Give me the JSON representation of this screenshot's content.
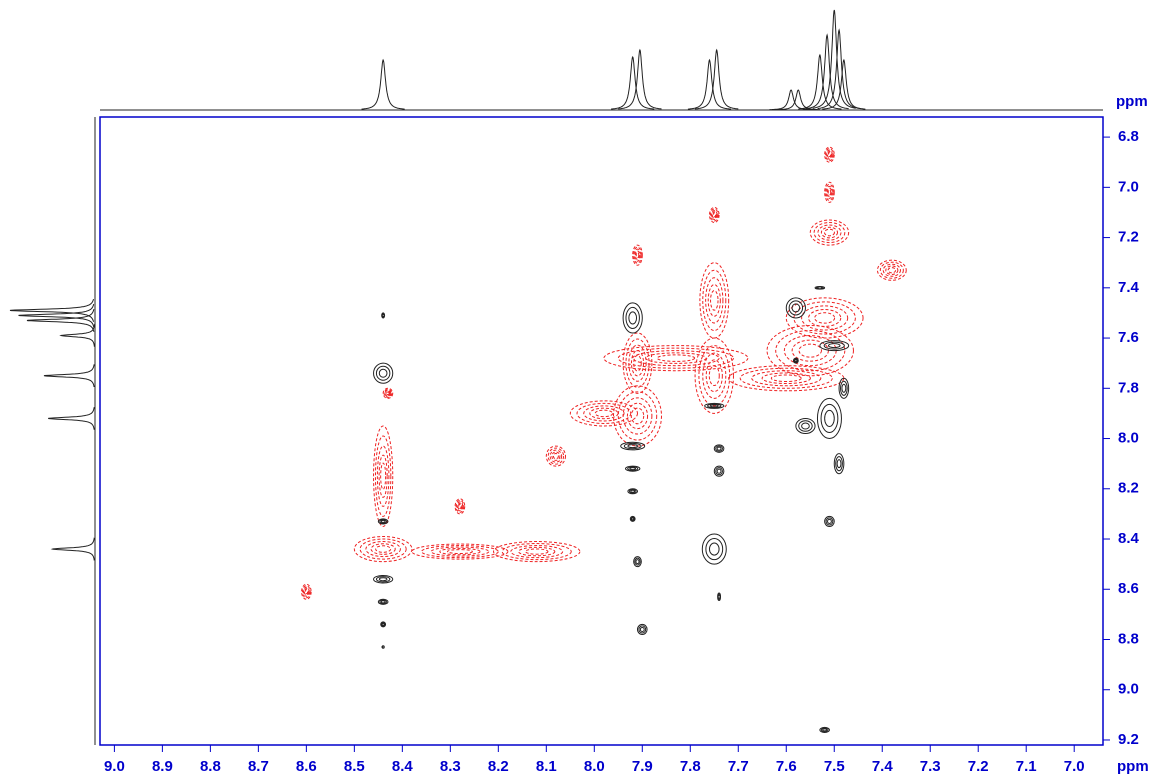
{
  "chart_data": {
    "type": "contour",
    "xlabel": "ppm",
    "ylabel": "ppm",
    "xlim": [
      9.03,
      6.94
    ],
    "ylim": [
      6.72,
      9.22
    ],
    "xticks": [
      {
        "value": 9,
        "label": "9.0"
      },
      8.9,
      8.8,
      8.7,
      8.6,
      8.5,
      8.4,
      8.3,
      8.2,
      8.1,
      {
        "value": 8,
        "label": "8.0"
      },
      7.9,
      7.8,
      7.7,
      7.6,
      7.5,
      7.4,
      7.3,
      7.2,
      7.1,
      {
        "value": 7,
        "label": "7.0"
      }
    ],
    "yticks": [
      6.8,
      {
        "value": 7,
        "label": "7.0"
      },
      7.2,
      7.4,
      7.6,
      7.8,
      {
        "value": 8,
        "label": "8.0"
      },
      8.2,
      8.4,
      8.6,
      8.8,
      {
        "value": 9,
        "label": "9.0"
      },
      9.2
    ],
    "axis_color": "#0000cc",
    "x_projection": {
      "x": [
        8.44,
        7.92,
        7.905,
        7.76,
        7.745,
        7.59,
        7.575,
        7.53,
        7.515,
        7.5,
        7.49,
        7.48
      ],
      "values": [
        0.5,
        0.53,
        0.6,
        0.5,
        0.6,
        0.2,
        0.2,
        0.55,
        0.75,
        1.0,
        0.8,
        0.5
      ]
    },
    "y_projection": {
      "y": [
        7.49,
        7.51,
        7.53,
        7.59,
        7.75,
        7.92,
        8.44
      ],
      "values": [
        1.0,
        0.9,
        0.8,
        0.4,
        0.6,
        0.55,
        0.5
      ]
    },
    "series": [
      {
        "color": "#ee2222",
        "dashed": true,
        "x": [
          8.44,
          8.44,
          8.12,
          8.28,
          8.6,
          8.28,
          8.43,
          8.08,
          7.91,
          7.91,
          7.91,
          7.98,
          7.75,
          7.75,
          7.75,
          7.83,
          7.52,
          7.55,
          7.38,
          7.51,
          7.51,
          7.51,
          7.6
        ],
        "y": [
          8.44,
          8.15,
          8.45,
          8.45,
          8.61,
          8.27,
          7.82,
          8.07,
          7.91,
          7.7,
          7.27,
          7.9,
          7.75,
          7.45,
          7.11,
          7.68,
          7.52,
          7.65,
          7.33,
          7.18,
          7.02,
          6.87,
          7.76
        ],
        "rx": [
          0.06,
          0.02,
          0.09,
          0.1,
          0.01,
          0.01,
          0.01,
          0.02,
          0.05,
          0.03,
          0.01,
          0.07,
          0.04,
          0.03,
          0.01,
          0.15,
          0.08,
          0.09,
          0.03,
          0.04,
          0.01,
          0.01,
          0.12
        ],
        "ry": [
          0.05,
          0.2,
          0.04,
          0.03,
          0.03,
          0.03,
          0.02,
          0.04,
          0.12,
          0.12,
          0.04,
          0.05,
          0.15,
          0.15,
          0.03,
          0.05,
          0.08,
          0.1,
          0.04,
          0.05,
          0.04,
          0.03,
          0.05
        ]
      },
      {
        "color": "#222222",
        "dashed": false,
        "x": [
          8.44,
          8.44,
          8.44,
          8.44,
          8.44,
          8.44,
          8.44,
          7.92,
          7.92,
          7.92,
          7.92,
          7.92,
          7.91,
          7.9,
          7.75,
          7.74,
          7.74,
          7.75,
          7.74,
          7.58,
          7.5,
          7.51,
          7.48,
          7.56,
          7.49,
          7.51,
          7.52,
          7.53,
          7.58
        ],
        "y": [
          7.51,
          7.74,
          8.33,
          8.56,
          8.65,
          8.74,
          8.83,
          7.52,
          8.03,
          8.12,
          8.21,
          8.32,
          8.49,
          8.76,
          7.87,
          8.04,
          8.13,
          8.44,
          8.63,
          7.48,
          7.63,
          7.92,
          7.8,
          7.95,
          8.1,
          8.33,
          9.16,
          7.4,
          7.69
        ],
        "rx": [
          0.003,
          0.02,
          0.01,
          0.02,
          0.01,
          0.005,
          0.002,
          0.02,
          0.025,
          0.015,
          0.01,
          0.005,
          0.008,
          0.01,
          0.02,
          0.01,
          0.01,
          0.025,
          0.003,
          0.02,
          0.03,
          0.025,
          0.01,
          0.02,
          0.01,
          0.01,
          0.01,
          0.01,
          0.005
        ],
        "ry": [
          0.01,
          0.04,
          0.01,
          0.015,
          0.01,
          0.01,
          0.005,
          0.06,
          0.015,
          0.01,
          0.01,
          0.01,
          0.02,
          0.02,
          0.01,
          0.015,
          0.02,
          0.06,
          0.015,
          0.04,
          0.02,
          0.08,
          0.04,
          0.03,
          0.04,
          0.02,
          0.01,
          0.005,
          0.01
        ]
      }
    ]
  }
}
